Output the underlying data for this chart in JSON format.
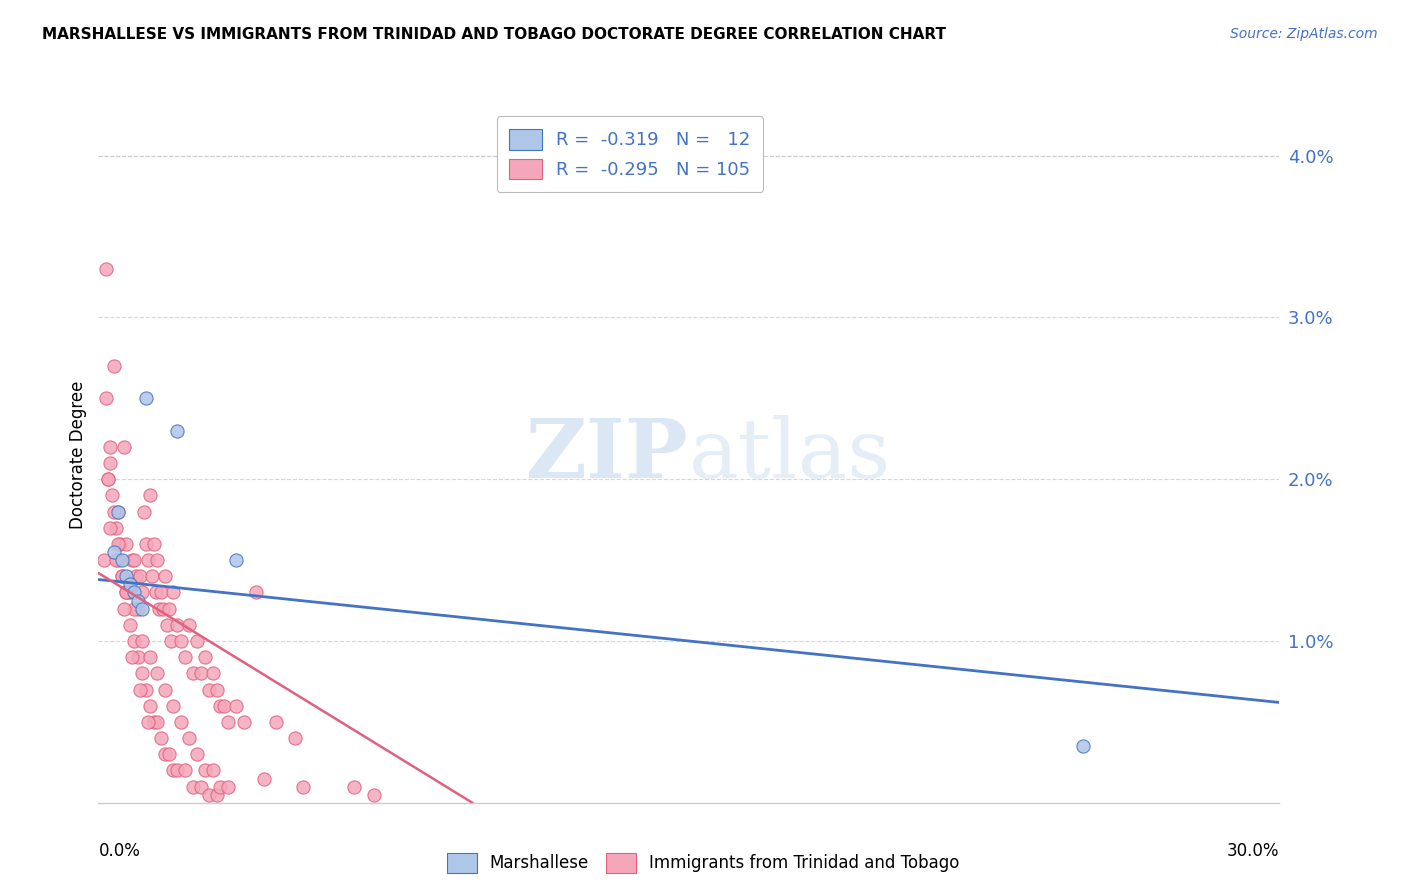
{
  "title": "MARSHALLESE VS IMMIGRANTS FROM TRINIDAD AND TOBAGO DOCTORATE DEGREE CORRELATION CHART",
  "source": "Source: ZipAtlas.com",
  "ylabel": "Doctorate Degree",
  "xlim": [
    0.0,
    30.0
  ],
  "ylim": [
    0.0,
    4.3
  ],
  "ytick_vals": [
    1.0,
    2.0,
    3.0,
    4.0
  ],
  "ytick_labels": [
    "1.0%",
    "2.0%",
    "3.0%",
    "4.0%"
  ],
  "legend_r1_val": "-0.319",
  "legend_n1_val": "12",
  "legend_r2_val": "-0.295",
  "legend_n2_val": "105",
  "blue_color": "#aec6e8",
  "pink_color": "#f4a7b9",
  "blue_edge_color": "#4472c4",
  "pink_edge_color": "#e06080",
  "blue_line_color": "#4472c4",
  "pink_line_color": "#e06080",
  "text_color": "#4472c4",
  "grid_color": "#cccccc",
  "watermark_color": "#ccddf0",
  "marshallese_x": [
    0.4,
    0.5,
    0.6,
    0.7,
    0.8,
    0.9,
    1.0,
    1.1,
    1.2,
    2.0,
    3.5,
    25.0
  ],
  "marshallese_y": [
    1.55,
    1.8,
    1.5,
    1.4,
    1.35,
    1.3,
    1.25,
    1.2,
    2.5,
    2.3,
    1.5,
    0.35
  ],
  "blue_trendline_x0": 0.0,
  "blue_trendline_y0": 1.38,
  "blue_trendline_x1": 30.0,
  "blue_trendline_y1": 0.62,
  "pink_trendline_x0": 0.0,
  "pink_trendline_y0": 1.42,
  "pink_trendline_x1": 9.5,
  "pink_trendline_y1": 0.0,
  "trinidad_x": [
    0.15,
    0.2,
    0.25,
    0.3,
    0.35,
    0.4,
    0.45,
    0.5,
    0.55,
    0.6,
    0.65,
    0.7,
    0.75,
    0.8,
    0.85,
    0.9,
    0.95,
    1.0,
    1.05,
    1.1,
    1.15,
    1.2,
    1.25,
    1.3,
    1.35,
    1.4,
    1.45,
    1.5,
    1.55,
    1.6,
    1.65,
    1.7,
    1.75,
    1.8,
    1.85,
    1.9,
    2.0,
    2.1,
    2.2,
    2.3,
    2.4,
    2.5,
    2.6,
    2.7,
    2.8,
    2.9,
    3.0,
    3.1,
    3.2,
    3.3,
    3.5,
    3.7,
    4.0,
    4.5,
    5.0,
    0.2,
    0.3,
    0.4,
    0.5,
    0.6,
    0.7,
    0.8,
    0.9,
    1.0,
    1.1,
    1.2,
    1.3,
    1.4,
    1.5,
    1.6,
    1.7,
    1.8,
    1.9,
    2.0,
    2.2,
    2.4,
    2.6,
    2.8,
    3.0,
    0.3,
    0.5,
    0.7,
    0.9,
    1.1,
    1.3,
    1.5,
    1.7,
    1.9,
    2.1,
    2.3,
    2.5,
    2.7,
    2.9,
    3.1,
    3.3,
    4.2,
    5.2,
    6.5,
    7.0,
    0.25,
    0.45,
    0.65,
    0.85,
    1.05,
    1.25
  ],
  "trinidad_y": [
    1.5,
    3.3,
    2.0,
    2.2,
    1.9,
    2.7,
    1.7,
    1.8,
    1.6,
    1.4,
    2.2,
    1.6,
    1.3,
    1.3,
    1.5,
    1.5,
    1.4,
    1.2,
    1.4,
    1.3,
    1.8,
    1.6,
    1.5,
    1.9,
    1.4,
    1.6,
    1.3,
    1.5,
    1.2,
    1.3,
    1.2,
    1.4,
    1.1,
    1.2,
    1.0,
    1.3,
    1.1,
    1.0,
    0.9,
    1.1,
    0.8,
    1.0,
    0.8,
    0.9,
    0.7,
    0.8,
    0.7,
    0.6,
    0.6,
    0.5,
    0.6,
    0.5,
    1.3,
    0.5,
    0.4,
    2.5,
    2.1,
    1.8,
    1.6,
    1.4,
    1.3,
    1.1,
    1.0,
    0.9,
    0.8,
    0.7,
    0.6,
    0.5,
    0.5,
    0.4,
    0.3,
    0.3,
    0.2,
    0.2,
    0.2,
    0.1,
    0.1,
    0.05,
    0.05,
    1.7,
    1.5,
    1.3,
    1.2,
    1.0,
    0.9,
    0.8,
    0.7,
    0.6,
    0.5,
    0.4,
    0.3,
    0.2,
    0.2,
    0.1,
    0.1,
    0.15,
    0.1,
    0.1,
    0.05,
    2.0,
    1.5,
    1.2,
    0.9,
    0.7,
    0.5
  ]
}
